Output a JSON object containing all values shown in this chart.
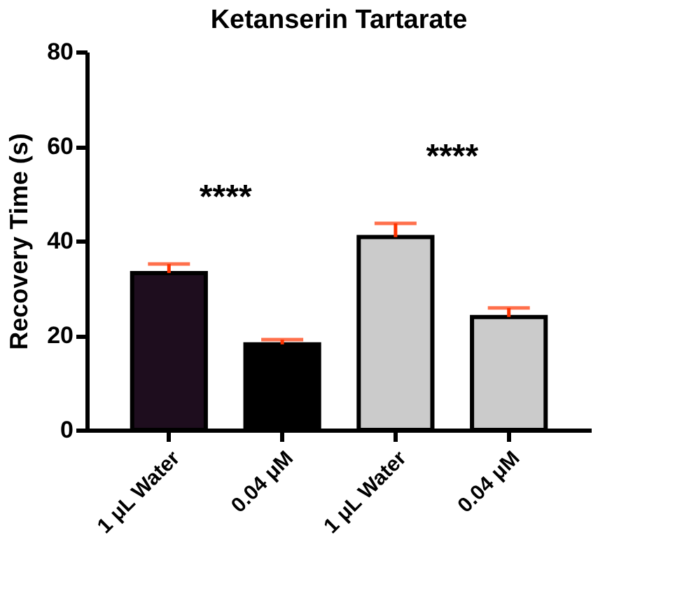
{
  "chart_data": {
    "type": "bar",
    "title": "Ketanserin Tartarate",
    "ylabel": "Recovery Time (s)",
    "categories": [
      "1 μL  Water",
      "0.04 μM",
      "1 μL  Water",
      "0.04 μM"
    ],
    "values": [
      33.2,
      18.1,
      40.8,
      23.9
    ],
    "colors": [
      "#1e0d1e",
      "#000000",
      "#cbcbcb",
      "#cbcbcb"
    ],
    "errors": [
      [
        33.2,
        35.1
      ],
      [
        18.1,
        19.1
      ],
      [
        40.8,
        43.7
      ],
      [
        23.9,
        25.8
      ]
    ],
    "annotations": [
      "****",
      "****"
    ],
    "ylim": [
      0,
      80
    ],
    "yticks": [
      0,
      20,
      40,
      60,
      80
    ],
    "grid": false
  }
}
